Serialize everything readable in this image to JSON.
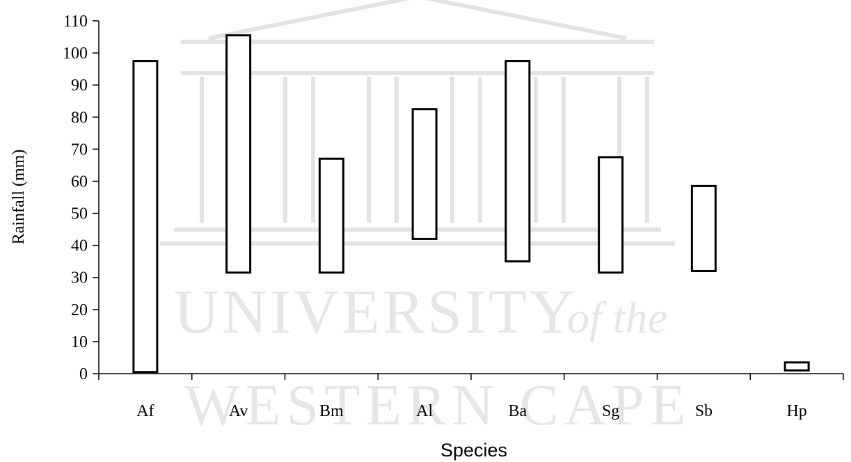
{
  "watermark": {
    "line1": "UNIVERSITY",
    "line1_suffix": "of the",
    "line2": "WESTERN CAPE"
  },
  "chart_data": {
    "type": "bar",
    "subtype": "floating-range",
    "title": "",
    "xlabel": "Species",
    "ylabel": "Rainfall (mm)",
    "ylim": [
      0,
      110
    ],
    "yticks": [
      0,
      10,
      20,
      30,
      40,
      50,
      60,
      70,
      80,
      90,
      100,
      110
    ],
    "grid": false,
    "legend": "none",
    "categories": [
      "Af",
      "Av",
      "Bm",
      "Al",
      "Ba",
      "Sg",
      "Sb",
      "Hp"
    ],
    "series": [
      {
        "low": [
          0.5,
          31.5,
          31.5,
          42,
          35,
          31.5,
          32,
          1
        ],
        "high": [
          97.5,
          105.5,
          67,
          82.5,
          97.5,
          67.5,
          58.5,
          3.5
        ]
      }
    ],
    "colors": {
      "bar_fill": "#ffffff",
      "bar_stroke": "#000000",
      "axis": "#000000"
    }
  }
}
